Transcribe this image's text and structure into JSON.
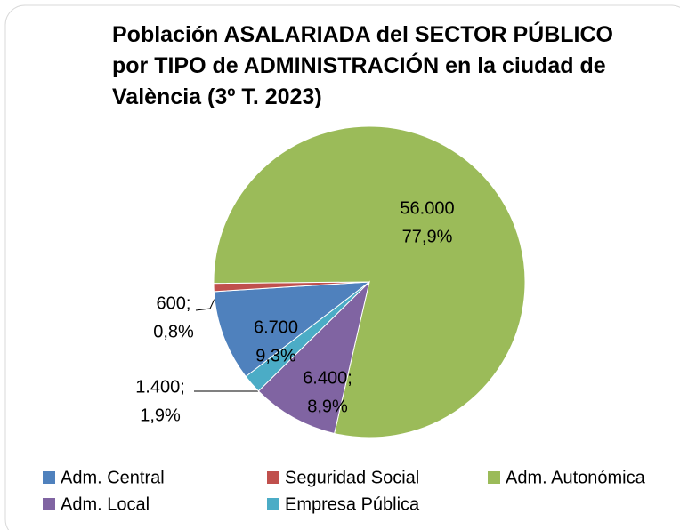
{
  "chart_data": {
    "type": "pie",
    "title": "Población ASALARIADA del SECTOR PÚBLICO por TIPO de ADMINISTRACIÓN en la ciudad de València (3º T. 2023)",
    "categories": [
      "Adm. Central",
      "Seguridad Social",
      "Adm. Autonómica",
      "Adm. Local",
      "Empresa Pública"
    ],
    "values": [
      6700,
      600,
      56000,
      6400,
      1400
    ],
    "value_labels": [
      "6.700",
      "600;",
      "56.000",
      "6.400;",
      "1.400;"
    ],
    "percents": [
      9.3,
      0.8,
      77.9,
      8.9,
      1.9
    ],
    "percent_labels": [
      "9,3%",
      "0,8%",
      "77,9%",
      "8,9%",
      "1,9%"
    ],
    "colors": [
      "#4f81bd",
      "#c0504d",
      "#9bbb59",
      "#8064a2",
      "#4bacc6"
    ]
  }
}
